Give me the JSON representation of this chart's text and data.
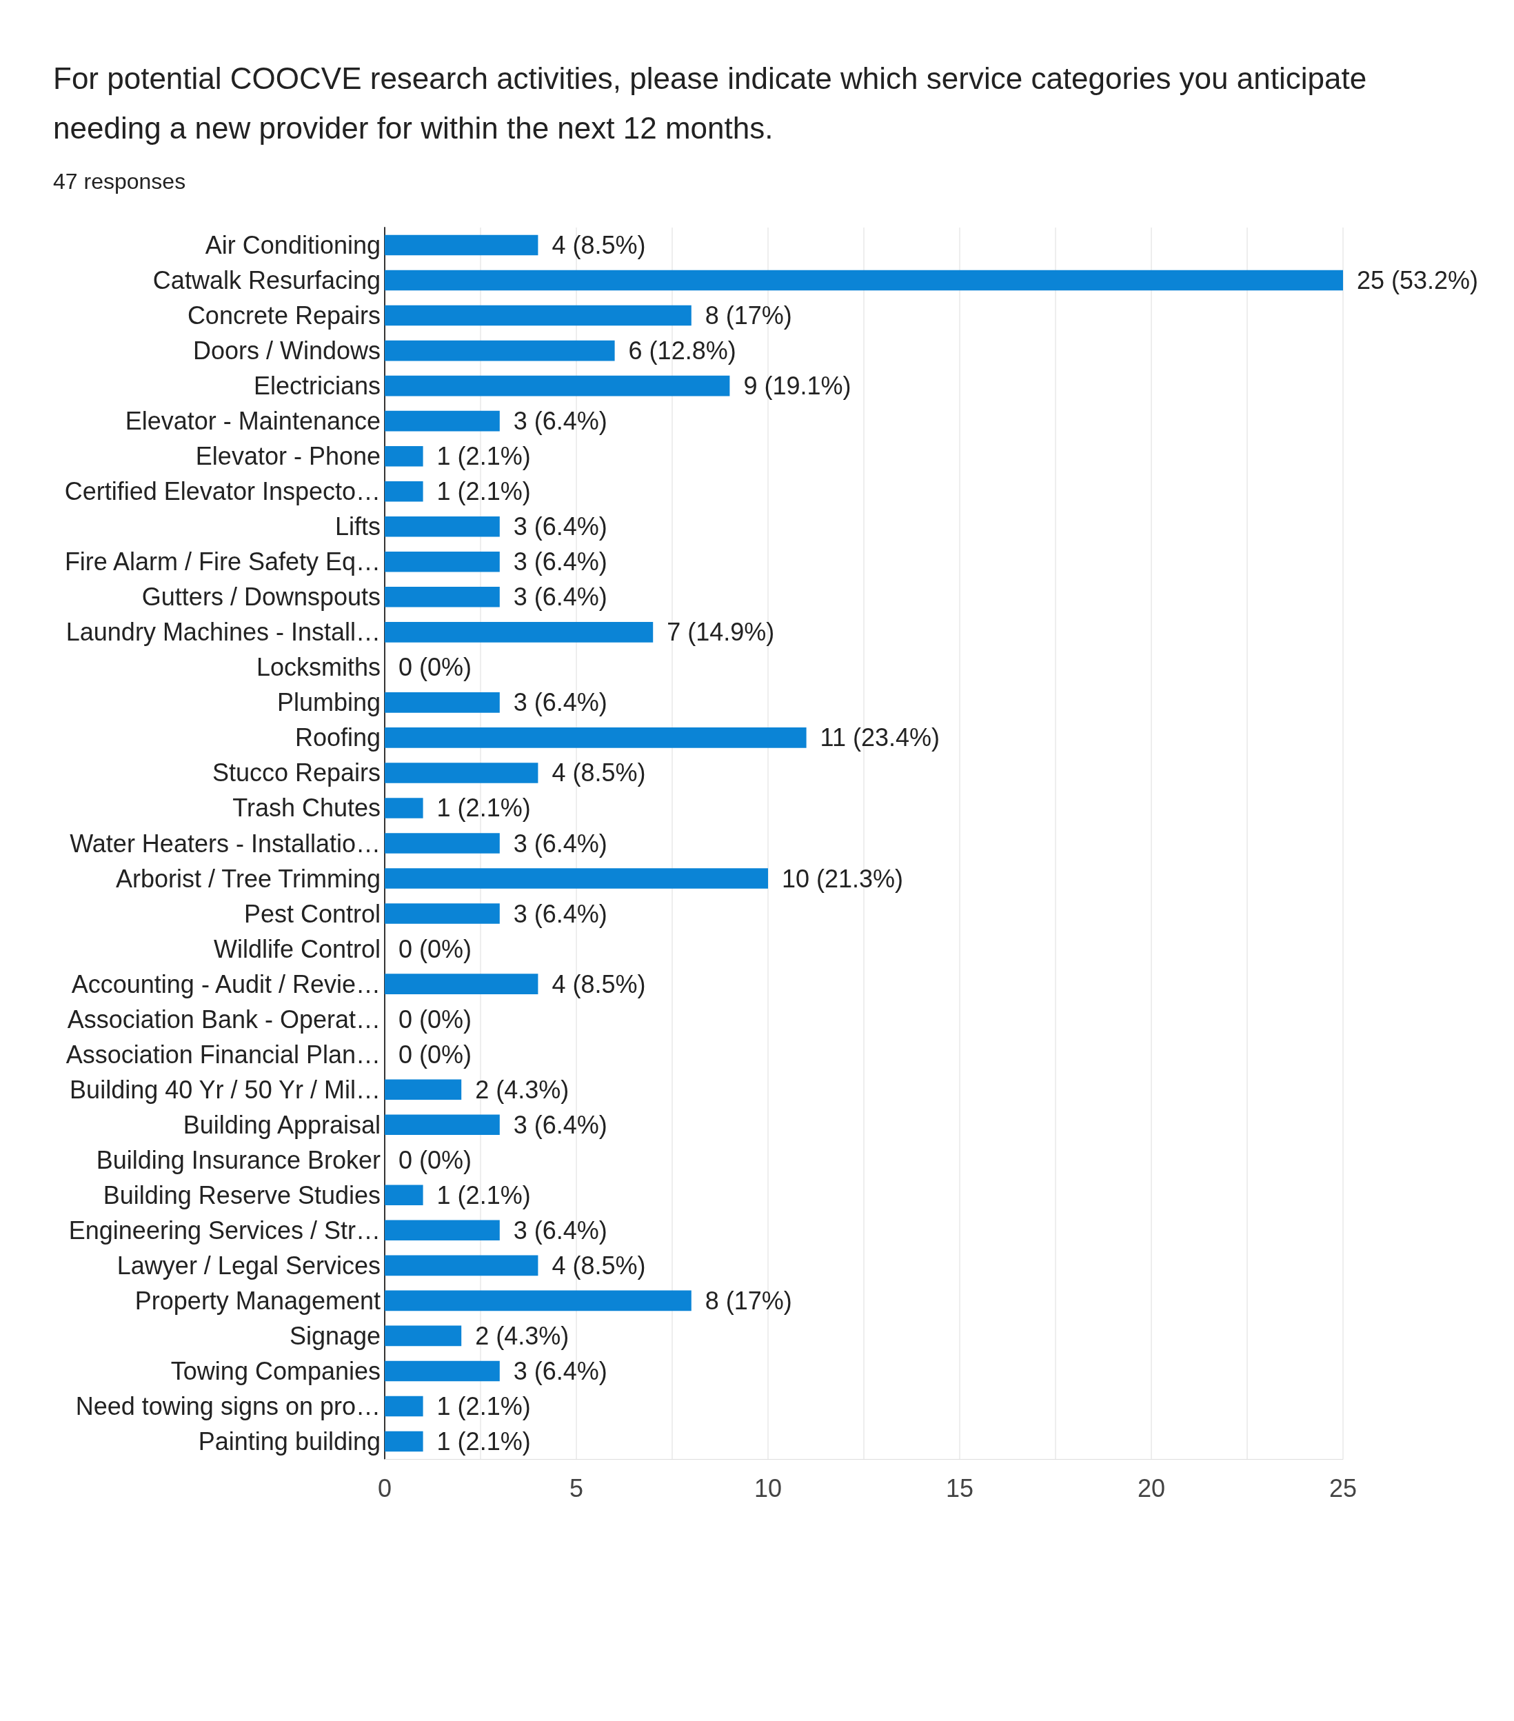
{
  "chart_data": {
    "type": "bar",
    "orientation": "horizontal",
    "title": "For potential COOCVE research activities, please indicate which service categories you anticipate needing a new provider for within the next 12 months.",
    "subtitle": "47 responses",
    "categories": [
      "Air Conditioning",
      "Catwalk Resurfacing",
      "Concrete Repairs",
      "Doors / Windows",
      "Electricians",
      "Elevator - Maintenance",
      "Elevator - Phone",
      "Certified Elevator Inspecto…",
      "Lifts",
      "Fire Alarm / Fire Safety Eq…",
      "Gutters / Downspouts",
      "Laundry Machines - Install…",
      "Locksmiths",
      "Plumbing",
      "Roofing",
      "Stucco Repairs",
      "Trash Chutes",
      "Water Heaters - Installatio…",
      "Arborist / Tree Trimming",
      "Pest Control",
      "Wildlife Control",
      "Accounting - Audit / Revie…",
      "Association Bank - Operat…",
      "Association Financial Plan…",
      "Building 40 Yr / 50 Yr / Mil…",
      "Building Appraisal",
      "Building Insurance Broker",
      "Building Reserve Studies",
      "Engineering Services / Str…",
      "Lawyer / Legal Services",
      "Property Management",
      "Signage",
      "Towing Companies",
      "Need towing signs on pro…",
      "Painting building"
    ],
    "values": [
      4,
      25,
      8,
      6,
      9,
      3,
      1,
      1,
      3,
      3,
      3,
      7,
      0,
      3,
      11,
      4,
      1,
      3,
      10,
      3,
      0,
      4,
      0,
      0,
      2,
      3,
      0,
      1,
      3,
      4,
      8,
      2,
      3,
      1,
      1
    ],
    "value_labels": [
      "4 (8.5%)",
      "25 (53.2%)",
      "8 (17%)",
      "6 (12.8%)",
      "9 (19.1%)",
      "3 (6.4%)",
      "1 (2.1%)",
      "1 (2.1%)",
      "3 (6.4%)",
      "3 (6.4%)",
      "3 (6.4%)",
      "7 (14.9%)",
      "0 (0%)",
      "3 (6.4%)",
      "11 (23.4%)",
      "4 (8.5%)",
      "1 (2.1%)",
      "3 (6.4%)",
      "10 (21.3%)",
      "3 (6.4%)",
      "0 (0%)",
      "4 (8.5%)",
      "0 (0%)",
      "0 (0%)",
      "2 (4.3%)",
      "3 (6.4%)",
      "0 (0%)",
      "1 (2.1%)",
      "3 (6.4%)",
      "4 (8.5%)",
      "8 (17%)",
      "2 (4.3%)",
      "3 (6.4%)",
      "1 (2.1%)",
      "1 (2.1%)"
    ],
    "color": "#0b84d6",
    "xlim": [
      0,
      25
    ],
    "xticks": [
      0,
      {
        "value": 2.5,
        "label": null
      },
      5,
      {
        "value": 7.5,
        "label": null
      },
      10,
      {
        "value": 12.5,
        "label": null
      },
      15,
      {
        "value": 17.5,
        "label": null
      },
      20,
      {
        "value": 22.5,
        "label": null
      },
      25
    ],
    "grid": "x"
  }
}
